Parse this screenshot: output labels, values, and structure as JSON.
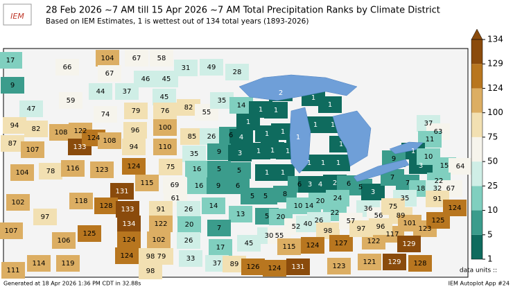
{
  "header": {
    "logo": "IEM",
    "title": "28 Feb 2026 ~7 AM till 15 Apr 2026 ~7 AM Total Precipitation Ranks by Climate District",
    "subtitle": "Based on IEM Estimates, 1 is wettest out of 134 total years (1893-2026)"
  },
  "legend": {
    "ticks": [
      1,
      5,
      10,
      25,
      50,
      75,
      100,
      124,
      129,
      134
    ],
    "colors": [
      "#0f6b5e",
      "#3b9c8c",
      "#80cfbf",
      "#cfeee6",
      "#f6f4ec",
      "#f2e0b2",
      "#dcae63",
      "#b8761f",
      "#8a4b0c"
    ],
    "units_label": "data units ::"
  },
  "districts": {
    "values": [
      17,
      66,
      9,
      59,
      47,
      104,
      67,
      58,
      67,
      46,
      45,
      44,
      37,
      45,
      31,
      49,
      28,
      74,
      79,
      76,
      82,
      55,
      35,
      14,
      94,
      82,
      108,
      122,
      96,
      100,
      87,
      107,
      133,
      124,
      108,
      94,
      110,
      85,
      26,
      6,
      4,
      1,
      1,
      1,
      2,
      1,
      1,
      1,
      1,
      1,
      1,
      1,
      1,
      1,
      1,
      1,
      1,
      1,
      1,
      1,
      1,
      35,
      9,
      3,
      16,
      5,
      5,
      104,
      78,
      116,
      123,
      124,
      75,
      115,
      69,
      16,
      9,
      6,
      6,
      3,
      4,
      2,
      6,
      5,
      3,
      5,
      5,
      8,
      131,
      61,
      118,
      128,
      14,
      13,
      10,
      14,
      20,
      24,
      22,
      36,
      102,
      97,
      133,
      91,
      26,
      134,
      122,
      20,
      7,
      5,
      20,
      52,
      40,
      26,
      98,
      57,
      56,
      107,
      125,
      106,
      124,
      102,
      26,
      17,
      45,
      30,
      55,
      115,
      124,
      127,
      122,
      117,
      97,
      96,
      124,
      98,
      79,
      33,
      111,
      114,
      119,
      37,
      89,
      126,
      124,
      131,
      123,
      121,
      129,
      128,
      98,
      37,
      63,
      11,
      1,
      3,
      9,
      10,
      15,
      64,
      7,
      7,
      18,
      22,
      32,
      67,
      91,
      35,
      75,
      89,
      101,
      124,
      123,
      129,
      125
    ]
  },
  "footer": {
    "generated": "Generated at 18 Apr 2026 1:36 PM CDT in 32.88s",
    "app": "IEM Autoplot App #24"
  }
}
